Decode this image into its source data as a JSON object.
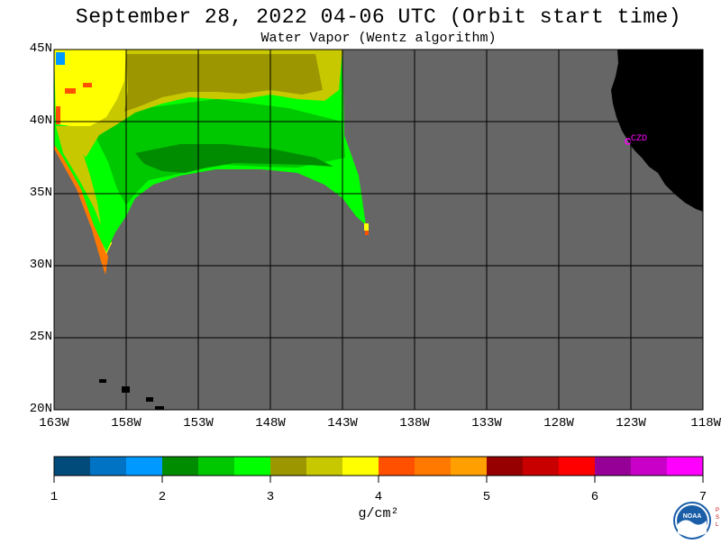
{
  "header": {
    "title": "September 28, 2022  04-06 UTC  (Orbit start time)",
    "subtitle": "Water Vapor (Wentz algorithm)"
  },
  "map": {
    "lat_labels": [
      "45N",
      "40N",
      "35N",
      "30N",
      "25N",
      "20N"
    ],
    "lon_labels": [
      "163W",
      "158W",
      "153W",
      "148W",
      "143W",
      "138W",
      "133W",
      "128W",
      "123W",
      "118W"
    ],
    "station_label": "CZD",
    "colors": {
      "nodata": "#666666",
      "land": "#000000",
      "station": "#ff00ff",
      "grid": "#000000"
    }
  },
  "colorbar": {
    "ticks": [
      "1",
      "2",
      "3",
      "4",
      "5",
      "6",
      "7"
    ],
    "unit_label": "g/cm²",
    "colors": [
      "#004b7a",
      "#0073c4",
      "#0099ff",
      "#008c00",
      "#00c800",
      "#00ff00",
      "#9c9600",
      "#c8c800",
      "#ffff00",
      "#ff5000",
      "#ff7800",
      "#ffa000",
      "#960000",
      "#c80000",
      "#ff0000",
      "#960096",
      "#c800c8",
      "#ff00ff"
    ]
  },
  "logo": {
    "text": "NOAA",
    "side_text": "PSL"
  }
}
